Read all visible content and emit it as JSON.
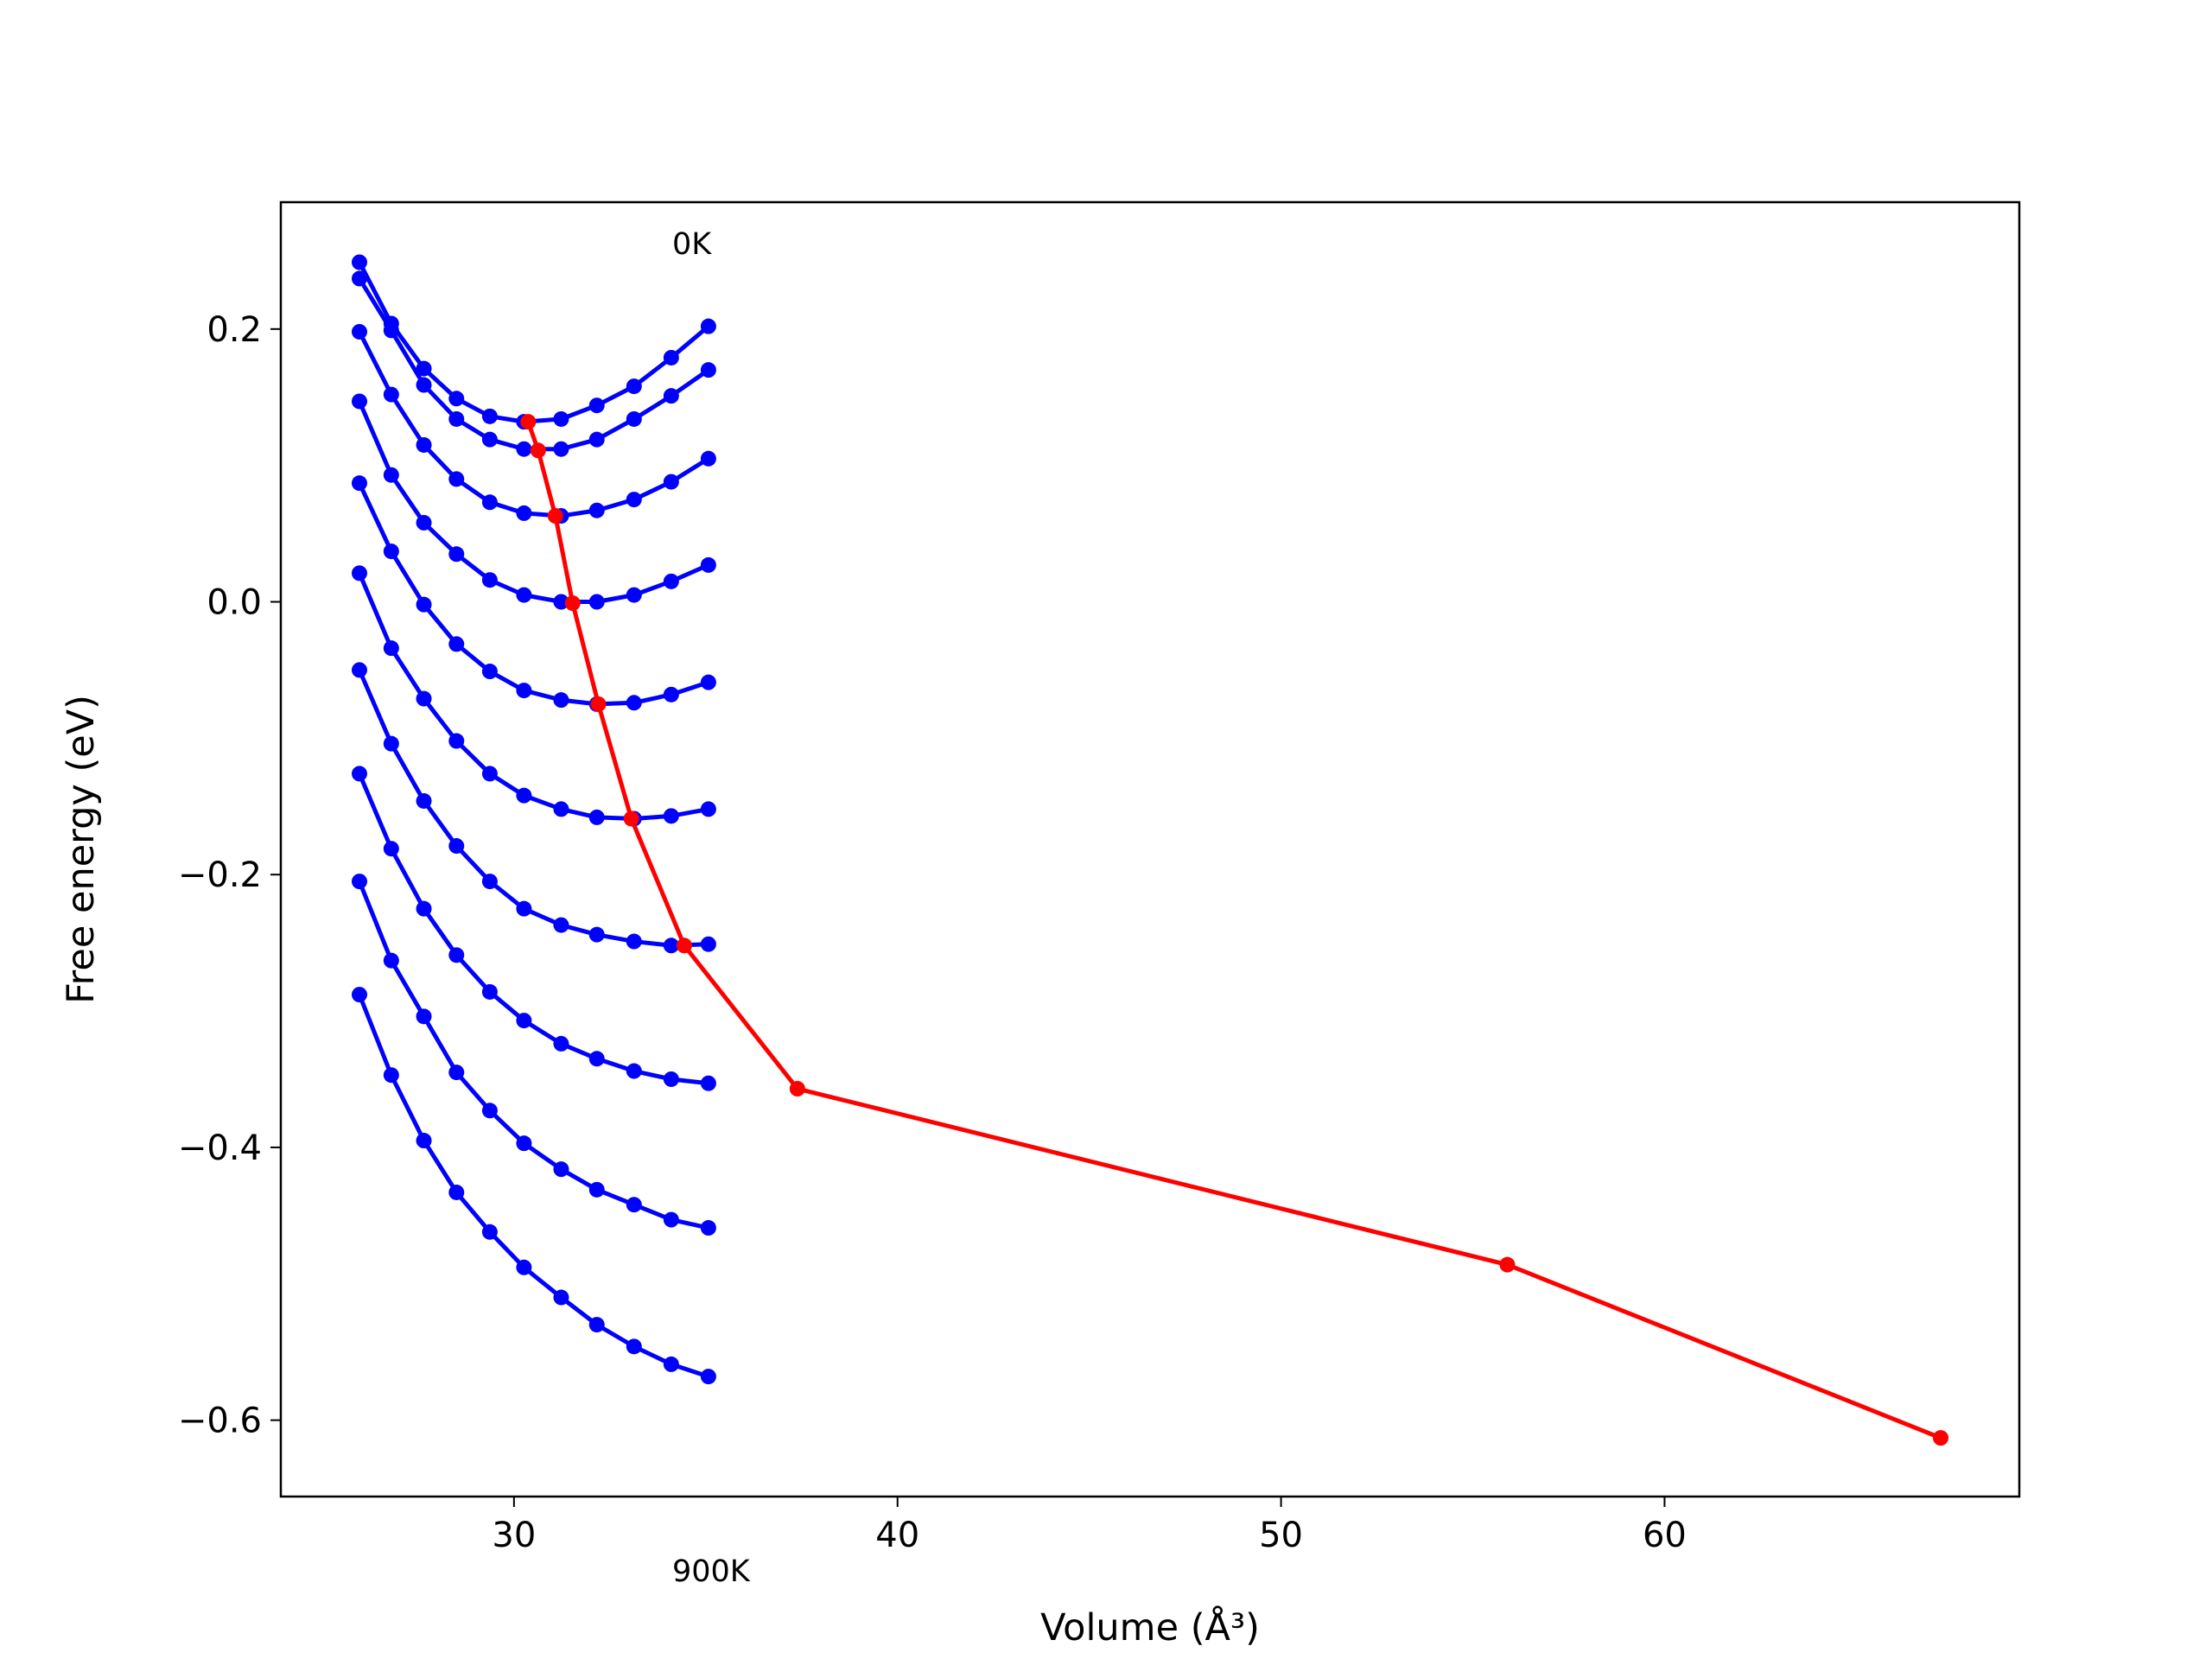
{
  "chart_data": {
    "type": "line",
    "xlabel": "Volume (Å³)",
    "ylabel": "Free energy (eV)",
    "annotations": [
      "0K",
      "900K"
    ],
    "x": [
      25.97,
      26.8,
      27.65,
      28.5,
      29.37,
      30.26,
      31.23,
      32.16,
      33.13,
      34.1,
      35.07
    ],
    "series": [
      {
        "color": "#0000ff",
        "values": [
          0.249,
          0.204,
          0.171,
          0.149,
          0.136,
          0.132,
          0.134,
          0.144,
          0.158,
          0.179,
          0.202
        ]
      },
      {
        "color": "#0000ff",
        "values": [
          0.237,
          0.199,
          0.159,
          0.134,
          0.119,
          0.112,
          0.112,
          0.119,
          0.134,
          0.151,
          0.17
        ]
      },
      {
        "color": "#0000ff",
        "values": [
          0.198,
          0.152,
          0.115,
          0.09,
          0.073,
          0.065,
          0.063,
          0.067,
          0.075,
          0.088,
          0.105
        ]
      },
      {
        "color": "#0000ff",
        "values": [
          0.147,
          0.093,
          0.058,
          0.035,
          0.016,
          0.005,
          0.0,
          0.0,
          0.005,
          0.015,
          0.027
        ]
      },
      {
        "color": "#0000ff",
        "values": [
          0.087,
          0.037,
          -0.002,
          -0.031,
          -0.051,
          -0.065,
          -0.072,
          -0.075,
          -0.074,
          -0.068,
          -0.059
        ]
      },
      {
        "color": "#0000ff",
        "values": [
          0.021,
          -0.034,
          -0.071,
          -0.102,
          -0.126,
          -0.142,
          -0.152,
          -0.158,
          -0.159,
          -0.157,
          -0.152
        ]
      },
      {
        "color": "#0000ff",
        "values": [
          -0.05,
          -0.104,
          -0.146,
          -0.179,
          -0.205,
          -0.225,
          -0.237,
          -0.244,
          -0.249,
          -0.252,
          -0.251
        ]
      },
      {
        "color": "#0000ff",
        "values": [
          -0.126,
          -0.181,
          -0.225,
          -0.259,
          -0.286,
          -0.307,
          -0.324,
          -0.335,
          -0.344,
          -0.35,
          -0.353
        ]
      },
      {
        "color": "#0000ff",
        "values": [
          -0.205,
          -0.263,
          -0.304,
          -0.345,
          -0.373,
          -0.397,
          -0.416,
          -0.431,
          -0.442,
          -0.453,
          -0.459
        ]
      },
      {
        "color": "#0000ff",
        "values": [
          -0.288,
          -0.347,
          -0.395,
          -0.433,
          -0.462,
          -0.488,
          -0.51,
          -0.53,
          -0.546,
          -0.559,
          -0.568
        ]
      },
      {
        "color": "#ff0000",
        "x": [
          30.37,
          30.63,
          31.08,
          31.53,
          32.2,
          33.06,
          34.44,
          37.39,
          55.9,
          67.2
        ],
        "values": [
          0.132,
          0.111,
          0.063,
          -0.001,
          -0.075,
          -0.159,
          -0.252,
          -0.357,
          -0.486,
          -0.613
        ]
      }
    ],
    "xlim": [
      23.92,
      69.25
    ],
    "ylim": [
      -0.656,
      0.293
    ],
    "xticks": [
      30,
      40,
      50,
      60
    ],
    "yticks": [
      {
        "value": -0.6,
        "label": "−0.6"
      },
      {
        "value": -0.4,
        "label": "−0.4"
      },
      {
        "value": -0.2,
        "label": "−0.2"
      },
      {
        "value": 0,
        "label": "0.0"
      },
      0.2
    ]
  }
}
